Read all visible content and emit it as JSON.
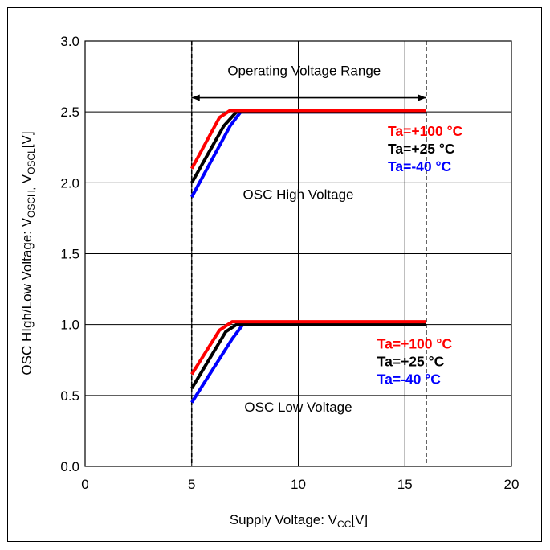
{
  "chart_data": {
    "type": "line",
    "xlabel": {
      "main": "Supply Voltage: V",
      "sub": "CC",
      "tail": "[V]"
    },
    "ylabel": {
      "prefix": "OSC HIgh/Low Voltage: V",
      "sub1": "OSCH,",
      "mid": " V",
      "sub2": "OSCL",
      "tail": "[V]"
    },
    "xlim": [
      0,
      20
    ],
    "ylim": [
      0,
      3.0
    ],
    "xticks": [
      "0",
      "5",
      "10",
      "15",
      "20"
    ],
    "xtick_values": [
      0,
      5,
      10,
      15,
      20
    ],
    "yticks": [
      "0.0",
      "0.5",
      "1.0",
      "1.5",
      "2.0",
      "2.5",
      "3.0"
    ],
    "ytick_values": [
      0,
      0.5,
      1.0,
      1.5,
      2.0,
      2.5,
      3.0
    ],
    "grid": true,
    "range_lines": [
      5,
      16
    ],
    "range_label": "Operating Voltage Range",
    "range_arrow_y": 2.6,
    "annotations": [
      {
        "text": "OSC High Voltage",
        "x": 10,
        "y": 1.92
      },
      {
        "text": "OSC Low Voltage",
        "x": 10,
        "y": 0.42
      }
    ],
    "series": [
      {
        "name": "Ta=+100 °C",
        "group": "high",
        "color": "#ff0000",
        "x": [
          5.0,
          6.3,
          6.8,
          16
        ],
        "y": [
          2.1,
          2.46,
          2.51,
          2.51
        ]
      },
      {
        "name": "Ta=+25 °C",
        "group": "high",
        "color": "#000000",
        "x": [
          5.0,
          6.5,
          7.1,
          16
        ],
        "y": [
          2.0,
          2.4,
          2.5,
          2.5
        ]
      },
      {
        "name": "Ta=-40 °C",
        "group": "high",
        "color": "#0000ff",
        "x": [
          5.0,
          6.8,
          7.3,
          16
        ],
        "y": [
          1.9,
          2.4,
          2.5,
          2.5
        ]
      },
      {
        "name": "Ta=+100 °C",
        "group": "low",
        "color": "#ff0000",
        "x": [
          5.0,
          6.3,
          6.9,
          16
        ],
        "y": [
          0.65,
          0.96,
          1.02,
          1.02
        ]
      },
      {
        "name": "Ta=+25 °C",
        "group": "low",
        "color": "#000000",
        "x": [
          5.0,
          6.6,
          7.1,
          16
        ],
        "y": [
          0.55,
          0.95,
          1.0,
          1.0
        ]
      },
      {
        "name": "Ta=-40 °C",
        "group": "low",
        "color": "#0000ff",
        "x": [
          5.0,
          6.9,
          7.4,
          16
        ],
        "y": [
          0.45,
          0.9,
          1.0,
          1.0
        ]
      }
    ],
    "legends": [
      {
        "group": "high",
        "items": [
          {
            "text": "Ta=+100 °C",
            "color": "#ff0000"
          },
          {
            "text": "Ta=+25 °C",
            "color": "#000000"
          },
          {
            "text": "Ta=-40 °C",
            "color": "#0000ff"
          }
        ]
      },
      {
        "group": "low",
        "items": [
          {
            "text": "Ta=+100 °C",
            "color": "#ff0000"
          },
          {
            "text": "Ta=+25 °C",
            "color": "#000000"
          },
          {
            "text": "Ta=-40 °C",
            "color": "#0000ff"
          }
        ]
      }
    ]
  }
}
